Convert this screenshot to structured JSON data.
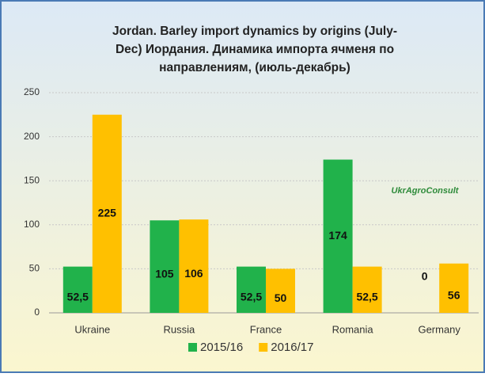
{
  "chart_data": {
    "type": "bar",
    "title_lines": [
      "Jordan. Barley import dynamics by origins (July-",
      "Dec) Иордания. Динамика импорта ячменя по",
      "направлениям, (июль-декабрь)"
    ],
    "annotation": "UkrAgroConsult",
    "categories": [
      "Ukraine",
      "Russia",
      "France",
      "Romania",
      "Germany"
    ],
    "series": [
      {
        "name": "2015/16",
        "color": "#21b24b",
        "values": [
          52.5,
          105,
          52.5,
          174,
          0
        ],
        "value_labels": [
          "52,5",
          "105",
          "52,5",
          "174",
          "0"
        ]
      },
      {
        "name": "2016/17",
        "color": "#ffc000",
        "values": [
          225,
          106,
          50,
          52.5,
          56
        ],
        "value_labels": [
          "225",
          "106",
          "50",
          "52,5",
          "56"
        ]
      }
    ],
    "ylim": [
      0,
      250
    ],
    "yticks": [
      0,
      50,
      100,
      150,
      200,
      250
    ],
    "grid": true
  }
}
